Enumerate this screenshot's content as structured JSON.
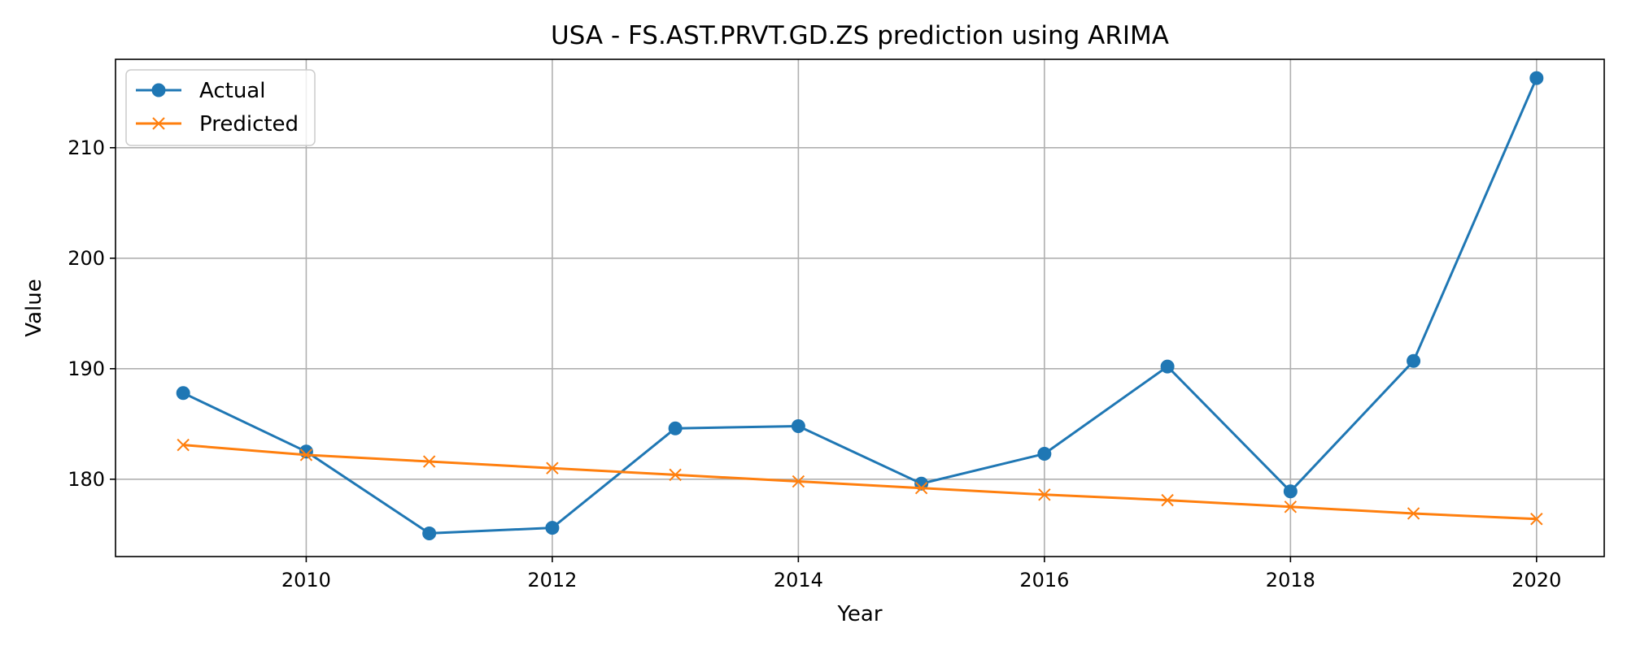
{
  "chart_data": {
    "type": "line",
    "title": "USA - FS.AST.PRVT.GD.ZS prediction using ARIMA",
    "xlabel": "Year",
    "ylabel": "Value",
    "x": [
      2009,
      2010,
      2011,
      2012,
      2013,
      2014,
      2015,
      2016,
      2017,
      2018,
      2019,
      2020
    ],
    "xlim": [
      2008.45,
      2020.55
    ],
    "ylim": [
      173.0,
      218.0
    ],
    "x_ticks": [
      2010,
      2012,
      2014,
      2016,
      2018,
      2020
    ],
    "y_ticks": [
      180,
      190,
      200,
      210
    ],
    "grid": true,
    "legend_position": "upper left",
    "series": [
      {
        "name": "Actual",
        "marker": "circle",
        "color": "#1f77b4",
        "values": [
          187.8,
          182.5,
          175.1,
          175.6,
          184.6,
          184.8,
          179.6,
          182.3,
          190.2,
          178.9,
          190.7,
          216.3
        ]
      },
      {
        "name": "Predicted",
        "marker": "x",
        "color": "#ff7f0e",
        "values": [
          183.1,
          182.2,
          181.6,
          181.0,
          180.4,
          179.8,
          179.2,
          178.6,
          178.1,
          177.5,
          176.9,
          176.4
        ]
      }
    ]
  }
}
